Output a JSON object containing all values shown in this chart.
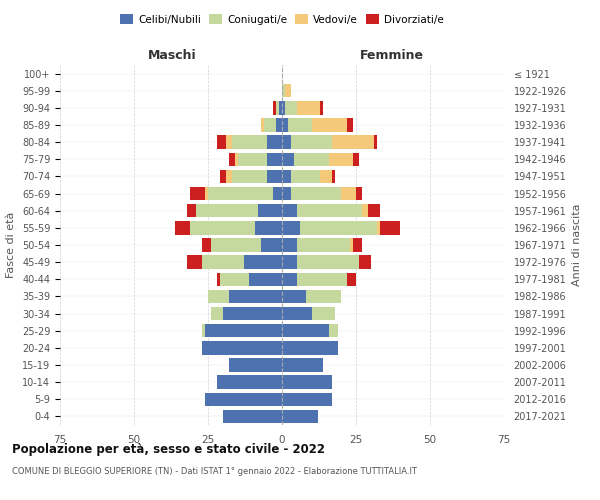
{
  "age_groups": [
    "0-4",
    "5-9",
    "10-14",
    "15-19",
    "20-24",
    "25-29",
    "30-34",
    "35-39",
    "40-44",
    "45-49",
    "50-54",
    "55-59",
    "60-64",
    "65-69",
    "70-74",
    "75-79",
    "80-84",
    "85-89",
    "90-94",
    "95-99",
    "100+"
  ],
  "birth_years": [
    "2017-2021",
    "2012-2016",
    "2007-2011",
    "2002-2006",
    "1997-2001",
    "1992-1996",
    "1987-1991",
    "1982-1986",
    "1977-1981",
    "1972-1976",
    "1967-1971",
    "1962-1966",
    "1957-1961",
    "1952-1956",
    "1947-1951",
    "1942-1946",
    "1937-1941",
    "1932-1936",
    "1927-1931",
    "1922-1926",
    "≤ 1921"
  ],
  "maschi": {
    "celibi": [
      20,
      26,
      22,
      18,
      27,
      26,
      20,
      18,
      11,
      13,
      7,
      9,
      8,
      3,
      5,
      5,
      5,
      2,
      1,
      0,
      0
    ],
    "coniugati": [
      0,
      0,
      0,
      0,
      0,
      1,
      4,
      7,
      10,
      14,
      17,
      22,
      21,
      22,
      12,
      10,
      12,
      4,
      1,
      0,
      0
    ],
    "vedovi": [
      0,
      0,
      0,
      0,
      0,
      0,
      0,
      0,
      0,
      0,
      0,
      0,
      0,
      1,
      2,
      1,
      2,
      1,
      0,
      0,
      0
    ],
    "divorziati": [
      0,
      0,
      0,
      0,
      0,
      0,
      0,
      0,
      1,
      5,
      3,
      5,
      3,
      5,
      2,
      2,
      3,
      0,
      1,
      0,
      0
    ]
  },
  "femmine": {
    "nubili": [
      12,
      17,
      17,
      14,
      19,
      16,
      10,
      8,
      5,
      5,
      5,
      6,
      5,
      3,
      3,
      4,
      3,
      2,
      1,
      0,
      0
    ],
    "coniugate": [
      0,
      0,
      0,
      0,
      0,
      3,
      8,
      12,
      17,
      21,
      18,
      26,
      22,
      17,
      10,
      12,
      14,
      8,
      4,
      1,
      0
    ],
    "vedove": [
      0,
      0,
      0,
      0,
      0,
      0,
      0,
      0,
      0,
      0,
      1,
      1,
      2,
      5,
      4,
      8,
      14,
      12,
      8,
      2,
      0
    ],
    "divorziate": [
      0,
      0,
      0,
      0,
      0,
      0,
      0,
      0,
      3,
      4,
      3,
      7,
      4,
      2,
      1,
      2,
      1,
      2,
      1,
      0,
      0
    ]
  },
  "colors": {
    "celibi": "#4e72b0",
    "coniugati": "#c5d89d",
    "vedovi": "#f5c97a",
    "divorziati": "#cc2020"
  },
  "xlim": 75,
  "title": "Popolazione per età, sesso e stato civile - 2022",
  "subtitle": "COMUNE DI BLEGGIO SUPERIORE (TN) - Dati ISTAT 1° gennaio 2022 - Elaborazione TUTTITALIA.IT",
  "ylabel_left": "Fasce di età",
  "ylabel_right": "Anni di nascita",
  "xlabel_left": "Maschi",
  "xlabel_right": "Femmine",
  "legend_labels": [
    "Celibi/Nubili",
    "Coniugati/e",
    "Vedovi/e",
    "Divorziati/e"
  ],
  "background_color": "#ffffff",
  "grid_color": "#cccccc"
}
